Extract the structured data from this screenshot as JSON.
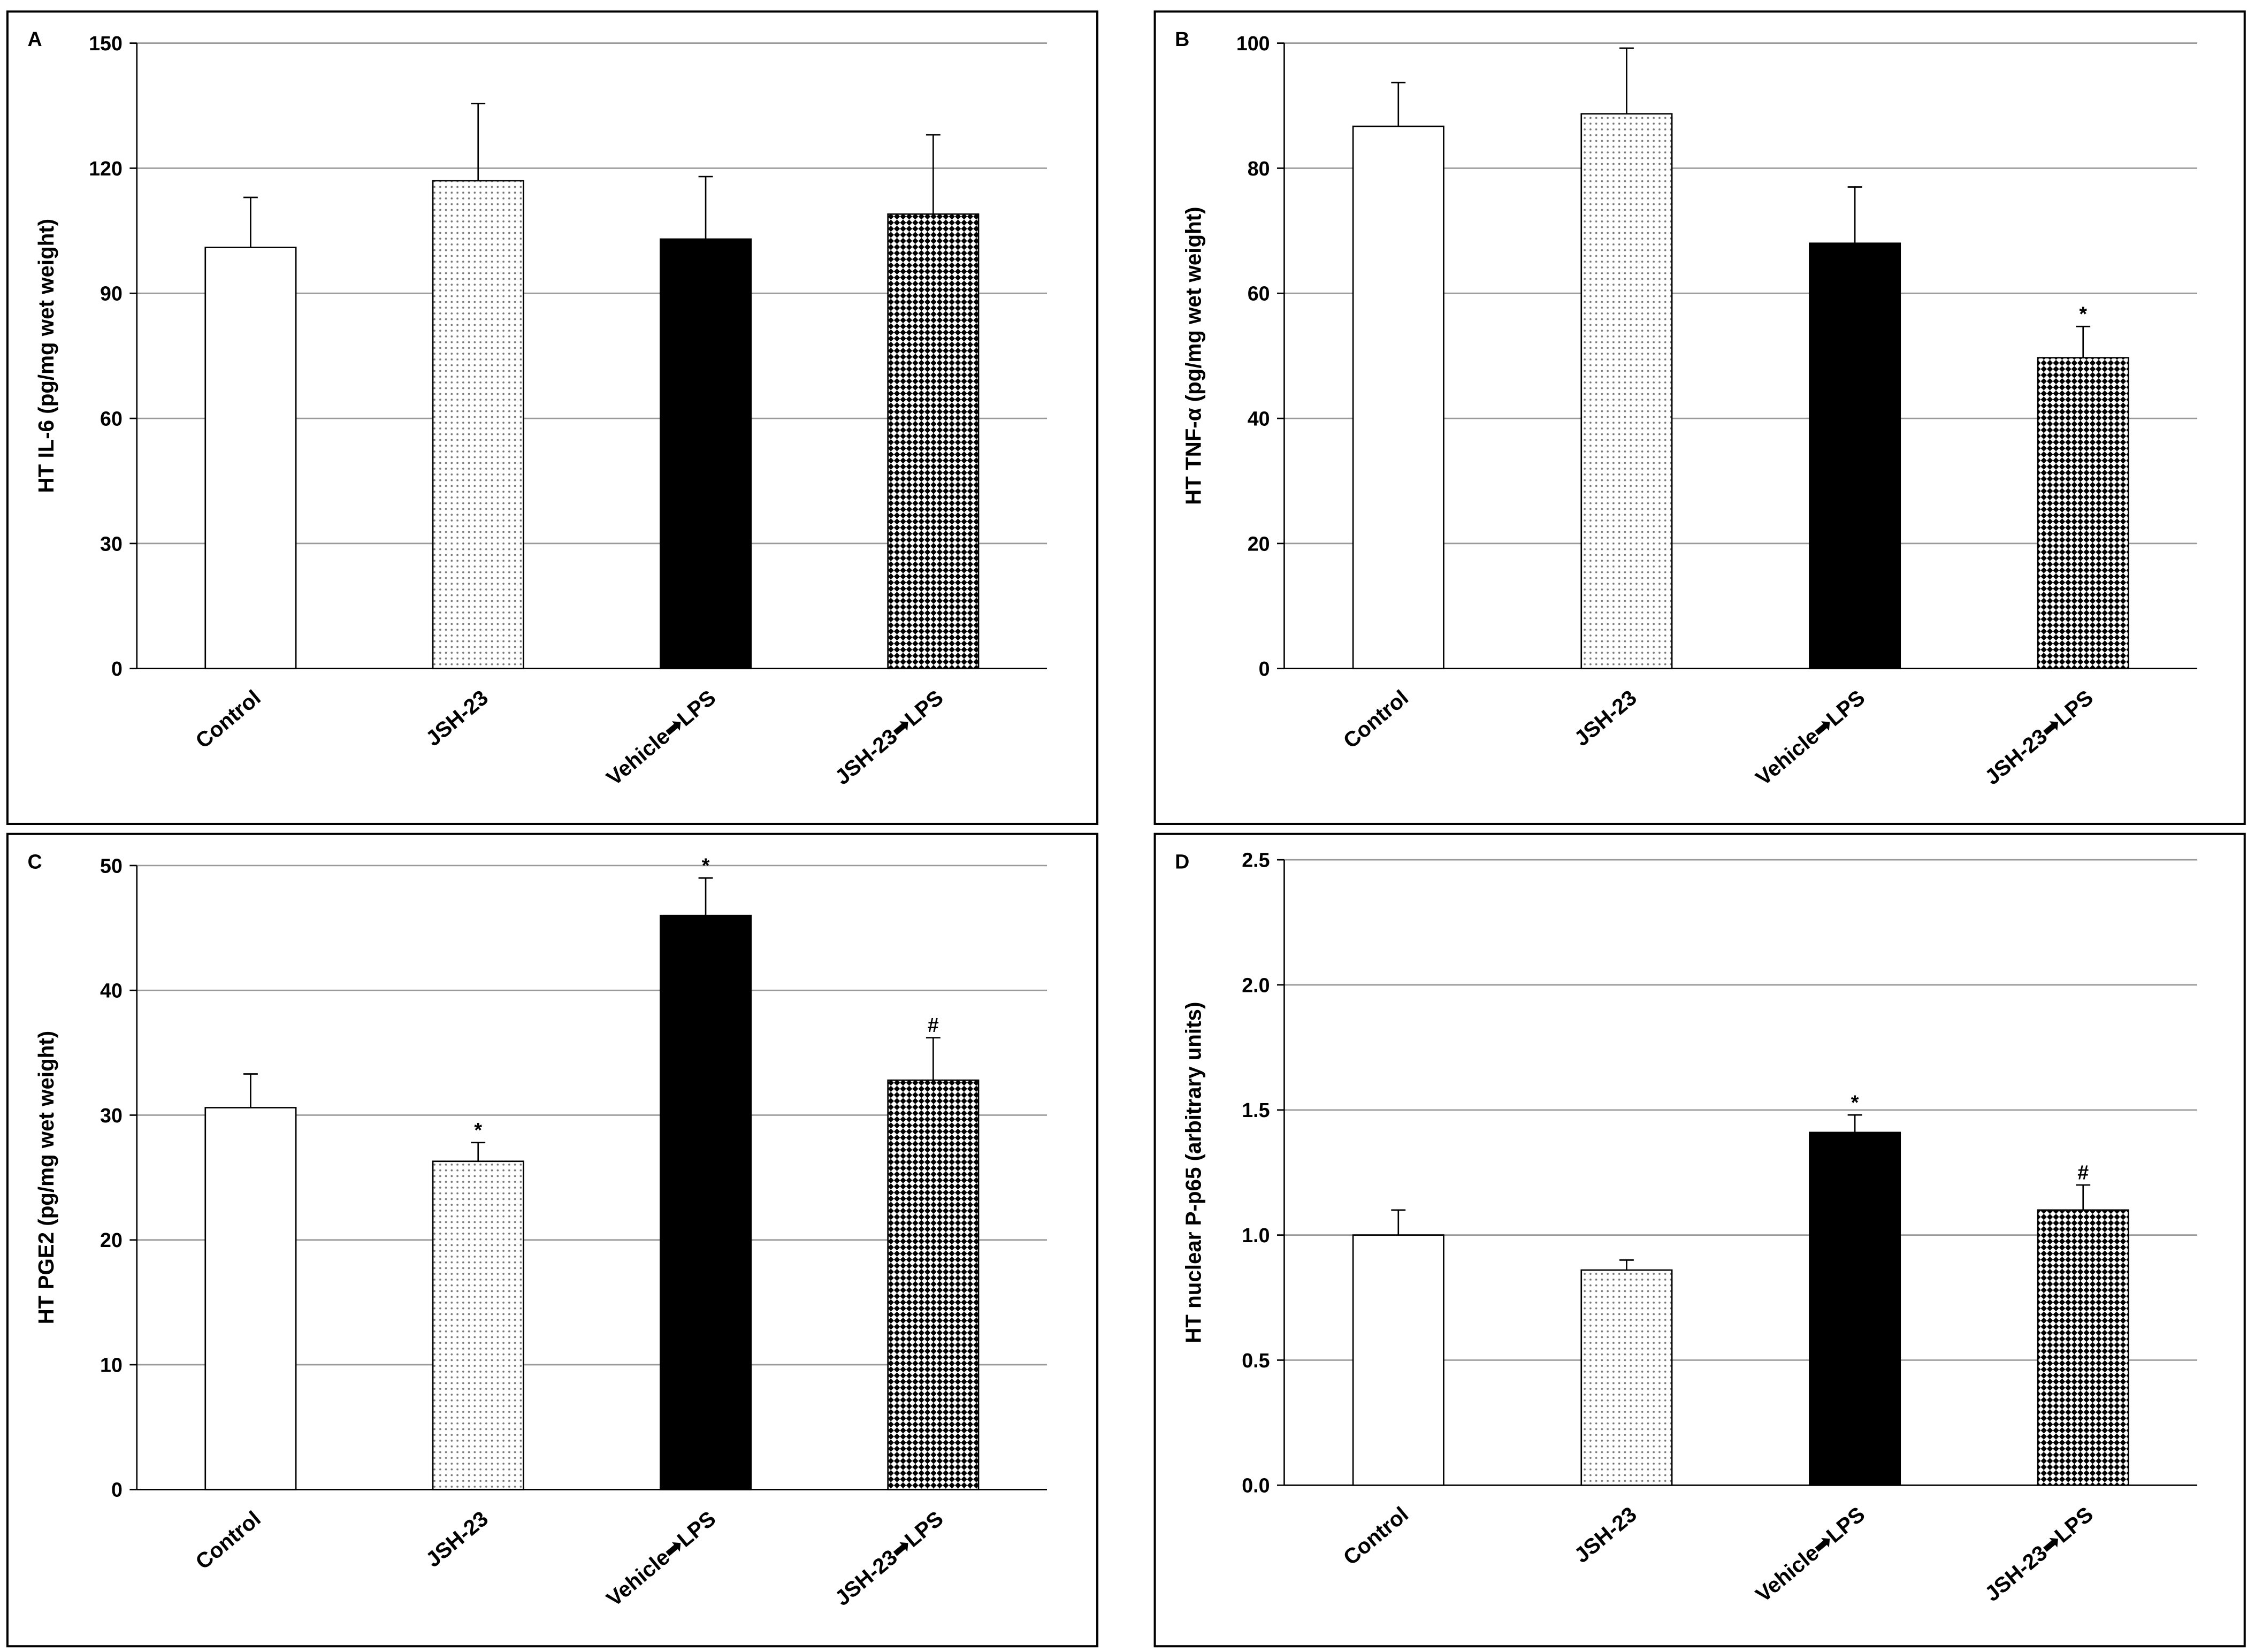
{
  "chart_data": [
    {
      "type": "bar",
      "panel": "A",
      "y_label": "HT IL-6 (pg/mg wet weight)",
      "categories": [
        "Control",
        "JSH-23",
        "Vehicle➡LPS",
        "JSH-23➡LPS"
      ],
      "values": [
        101,
        117,
        103,
        109
      ],
      "errors": [
        12,
        18.5,
        15,
        19
      ],
      "annotations": [
        null,
        null,
        null,
        null
      ],
      "bar_fills": [
        "#ffffff",
        "dots",
        "#000000",
        "diamonds"
      ],
      "ylim": [
        0,
        150
      ],
      "yticks": [
        0,
        30,
        60,
        90,
        120,
        150
      ],
      "grid": true
    },
    {
      "type": "bar",
      "panel": "B",
      "y_label": "HT TNF-α (pg/mg wet weight)",
      "categories": [
        "Control",
        "JSH-23",
        "Vehicle➡LPS",
        "JSH-23➡LPS"
      ],
      "values": [
        86.7,
        88.7,
        68,
        49.7
      ],
      "errors": [
        7,
        10.5,
        9,
        5
      ],
      "annotations": [
        null,
        null,
        null,
        "*"
      ],
      "bar_fills": [
        "#ffffff",
        "dots",
        "#000000",
        "diamonds"
      ],
      "ylim": [
        0,
        100
      ],
      "yticks": [
        0,
        20,
        40,
        60,
        80,
        100
      ],
      "grid": true
    },
    {
      "type": "bar",
      "panel": "C",
      "y_label": "HT PGE2 (pg/mg wet weight)",
      "categories": [
        "Control",
        "JSH-23",
        "Vehicle➡LPS",
        "JSH-23➡LPS"
      ],
      "values": [
        30.6,
        26.3,
        46,
        32.8
      ],
      "errors": [
        2.7,
        1.5,
        3,
        3.4
      ],
      "annotations": [
        null,
        "*",
        "*",
        "#"
      ],
      "bar_fills": [
        "#ffffff",
        "dots",
        "#000000",
        "diamonds"
      ],
      "ylim": [
        0,
        50
      ],
      "yticks": [
        0,
        10,
        20,
        30,
        40,
        50
      ],
      "grid": true
    },
    {
      "type": "bar",
      "panel": "D",
      "y_label": "HT nuclear P-p65 (arbitrary units)",
      "categories": [
        "Control",
        "JSH-23",
        "Vehicle➡LPS",
        "JSH-23➡LPS"
      ],
      "values": [
        1.0,
        0.86,
        1.41,
        1.1
      ],
      "errors": [
        0.1,
        0.04,
        0.07,
        0.1
      ],
      "annotations": [
        null,
        null,
        "*",
        "#"
      ],
      "bar_fills": [
        "#ffffff",
        "dots",
        "#000000",
        "diamonds"
      ],
      "ylim": [
        0,
        2.5
      ],
      "yticks": [
        {
          "value": 0,
          "label": "0.0"
        },
        0.5,
        {
          "value": 1,
          "label": "1.0"
        },
        1.5,
        {
          "value": 2,
          "label": "2.0"
        },
        2.5
      ],
      "grid": true
    }
  ]
}
